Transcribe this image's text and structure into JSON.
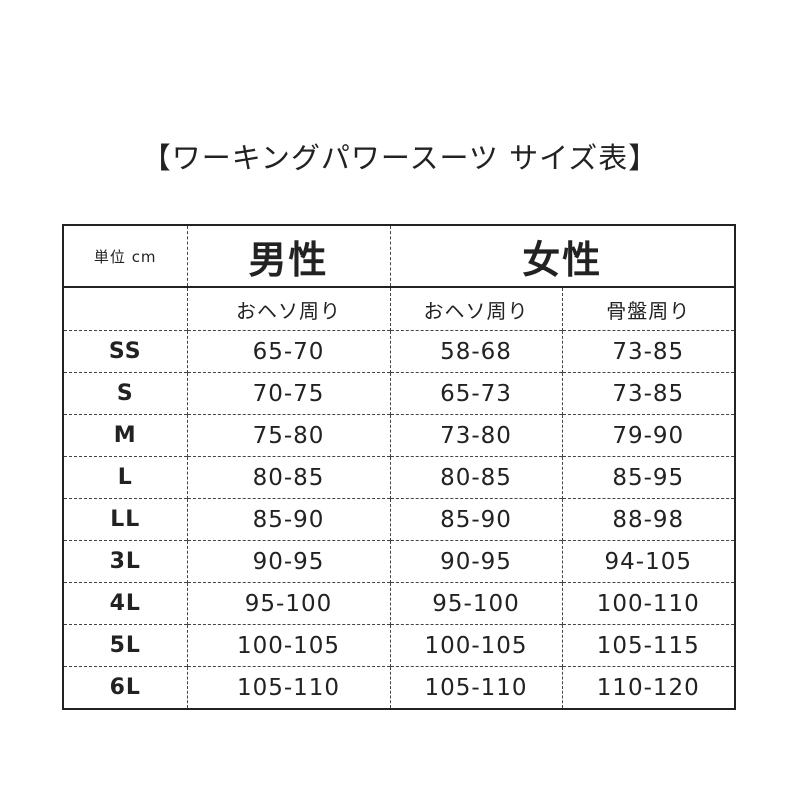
{
  "title": "【ワーキングパワースーツ サイズ表】",
  "unit_label": "単位 cm",
  "groups": {
    "male": "男性",
    "female": "女性"
  },
  "subheaders": [
    "",
    "おヘソ周り",
    "おヘソ周り",
    "骨盤周り"
  ],
  "rows": [
    [
      "SS",
      "65-70",
      "58-68",
      "73-85"
    ],
    [
      "S",
      "70-75",
      "65-73",
      "73-85"
    ],
    [
      "M",
      "75-80",
      "73-80",
      "79-90"
    ],
    [
      "L",
      "80-85",
      "80-85",
      "85-95"
    ],
    [
      "LL",
      "85-90",
      "85-90",
      "88-98"
    ],
    [
      "3L",
      "90-95",
      "90-95",
      "94-105"
    ],
    [
      "4L",
      "95-100",
      "95-100",
      "100-110"
    ],
    [
      "5L",
      "100-105",
      "100-105",
      "105-115"
    ],
    [
      "6L",
      "105-110",
      "105-110",
      "110-120"
    ]
  ]
}
